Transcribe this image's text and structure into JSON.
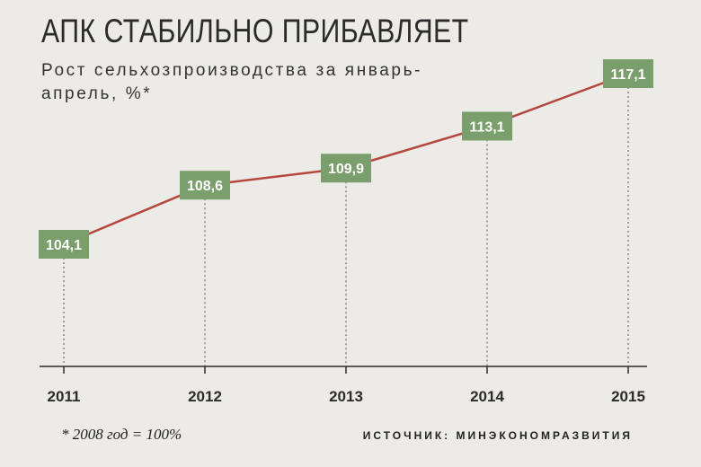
{
  "header": {
    "title": "АПК СТАБИЛЬНО ПРИБАВЛЯЕТ",
    "subtitle": "Рост сельхозпроизводства за январь-апрель, %*"
  },
  "footer": {
    "note": "* 2008 год = 100%",
    "source": "ИСТОЧНИК: МИНЭКОНОМРАЗВИТИЯ"
  },
  "colors": {
    "background": "#ecebe8",
    "line": "#b5473d",
    "label_box": "#7a9e6c",
    "axis": "#2b2b2b"
  },
  "chart_data": {
    "type": "line",
    "categories": [
      "2011",
      "2012",
      "2013",
      "2014",
      "2015"
    ],
    "series": [
      {
        "values": [
          104.1,
          108.6,
          109.9,
          113.1,
          117.1
        ],
        "labels": [
          "104,1",
          "108,6",
          "109,9",
          "113,1",
          "117,1"
        ]
      }
    ],
    "title": "АПК СТАБИЛЬНО ПРИБАВЛЯЕТ",
    "subtitle": "Рост сельхозпроизводства за январь-апрель, %*",
    "xlabel": "",
    "ylabel": "",
    "grid": false,
    "legend": "none",
    "dashed_drop_lines": true
  }
}
